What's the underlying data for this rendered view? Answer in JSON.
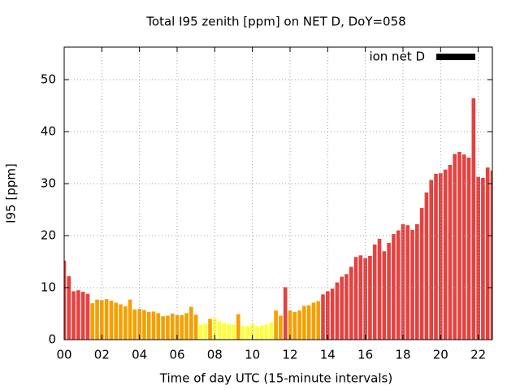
{
  "chart_data": {
    "type": "bar",
    "title": "Total I95 zenith [ppm] on NET D, DoY=058",
    "xlabel": "Time of day UTC (15-minute intervals)",
    "ylabel": "I95 [ppm]",
    "x": [
      0,
      0.25,
      0.5,
      0.75,
      1,
      1.25,
      1.5,
      1.75,
      2,
      2.25,
      2.5,
      2.75,
      3,
      3.25,
      3.5,
      3.75,
      4,
      4.25,
      4.5,
      4.75,
      5,
      5.25,
      5.5,
      5.75,
      6,
      6.25,
      6.5,
      6.75,
      7,
      7.25,
      7.5,
      7.75,
      8,
      8.25,
      8.5,
      8.75,
      9,
      9.25,
      9.5,
      9.75,
      10,
      10.25,
      10.5,
      10.75,
      11,
      11.25,
      11.5,
      11.75,
      12,
      12.25,
      12.5,
      12.75,
      13,
      13.25,
      13.5,
      13.75,
      14,
      14.25,
      14.5,
      14.75,
      15,
      15.25,
      15.5,
      15.75,
      16,
      16.25,
      16.5,
      16.75,
      17,
      17.25,
      17.5,
      17.75,
      18,
      18.25,
      18.5,
      18.75,
      19,
      19.25,
      19.5,
      19.75,
      20,
      20.25,
      20.5,
      20.75,
      21,
      21.25,
      21.5,
      21.75,
      22,
      22.25,
      22.5,
      22.75
    ],
    "series": [
      {
        "name": "ion net D",
        "color": "#000000",
        "values": [
          15.2,
          12.2,
          9.3,
          9.5,
          9.2,
          8.8,
          7.0,
          7.7,
          7.6,
          7.8,
          7.5,
          7.1,
          6.8,
          6.4,
          7.7,
          5.8,
          5.9,
          5.7,
          5.3,
          5.4,
          5.1,
          4.5,
          4.6,
          5.0,
          4.7,
          4.7,
          5.1,
          6.3,
          4.8,
          2.9,
          3.1,
          4.0,
          4.1,
          3.5,
          3.2,
          3.0,
          2.9,
          4.9,
          2.6,
          2.6,
          3.0,
          2.6,
          2.7,
          2.9,
          3.3,
          5.6,
          4.6,
          10.1,
          5.6,
          5.3,
          5.6,
          6.5,
          6.6,
          7.1,
          7.4,
          8.7,
          9.3,
          9.8,
          11.0,
          12.1,
          12.6,
          14.0,
          15.9,
          16.2,
          15.7,
          16.1,
          18.3,
          19.4,
          17.0,
          18.6,
          20.3,
          21.0,
          22.2,
          22.0,
          21.1,
          22.2,
          25.3,
          28.3,
          30.7,
          31.9,
          32.0,
          32.7,
          33.6,
          35.7,
          36.1,
          35.6,
          35.0,
          46.4,
          31.3,
          31.1,
          33.1,
          32.5
        ],
        "colors": [
          "#e5413f",
          "#e5413f",
          "#e5413f",
          "#e5413f",
          "#e5413f",
          "#e5413f",
          "#f5a000",
          "#f5a000",
          "#f5a000",
          "#f5a000",
          "#f5a000",
          "#f5a000",
          "#f5a000",
          "#f5a000",
          "#f5a000",
          "#f5a000",
          "#f5a000",
          "#f5a000",
          "#f5a000",
          "#f5a000",
          "#f5a000",
          "#f5a000",
          "#f5a000",
          "#f5a000",
          "#f5a000",
          "#f5a000",
          "#f5a000",
          "#f5a000",
          "#f5a000",
          "#ffff33",
          "#ffff33",
          "#f5a000",
          "#ffff33",
          "#ffff33",
          "#ffff33",
          "#ffff33",
          "#ffff33",
          "#f5a000",
          "#ffff33",
          "#ffff33",
          "#ffff33",
          "#ffff33",
          "#ffff33",
          "#ffff33",
          "#ffff33",
          "#f5a000",
          "#f5a000",
          "#e5413f",
          "#f5a000",
          "#f5a000",
          "#f5a000",
          "#f5a000",
          "#f5a000",
          "#f5a000",
          "#f5a000",
          "#e5413f",
          "#e5413f",
          "#e5413f",
          "#e5413f",
          "#e5413f",
          "#e5413f",
          "#e5413f",
          "#e5413f",
          "#e5413f",
          "#e5413f",
          "#e5413f",
          "#e5413f",
          "#e5413f",
          "#e5413f",
          "#e5413f",
          "#e5413f",
          "#e5413f",
          "#e5413f",
          "#e5413f",
          "#e5413f",
          "#e5413f",
          "#e5413f",
          "#e5413f",
          "#e5413f",
          "#e5413f",
          "#e5413f",
          "#e5413f",
          "#e5413f",
          "#e5413f",
          "#e5413f",
          "#e5413f",
          "#e5413f",
          "#e5413f",
          "#e5413f",
          "#e5413f",
          "#e5413f",
          "#e5413f"
        ]
      }
    ],
    "xlim": [
      0,
      22.75
    ],
    "ylim": [
      0,
      56.25
    ],
    "xticks": [
      {
        "value": 0,
        "label": "00"
      },
      {
        "value": 2,
        "label": "02"
      },
      {
        "value": 4,
        "label": "04"
      },
      {
        "value": 6,
        "label": "06"
      },
      {
        "value": 8,
        "label": "08"
      },
      {
        "value": 10,
        "label": "10"
      },
      {
        "value": 12,
        "label": "12"
      },
      {
        "value": 14,
        "label": "14"
      },
      {
        "value": 16,
        "label": "16"
      },
      {
        "value": 18,
        "label": "18"
      },
      {
        "value": 20,
        "label": "20"
      },
      {
        "value": 22,
        "label": "22"
      }
    ],
    "yticks": [
      0,
      10,
      20,
      30,
      40,
      50
    ],
    "grid": true,
    "legend": "top-right"
  }
}
